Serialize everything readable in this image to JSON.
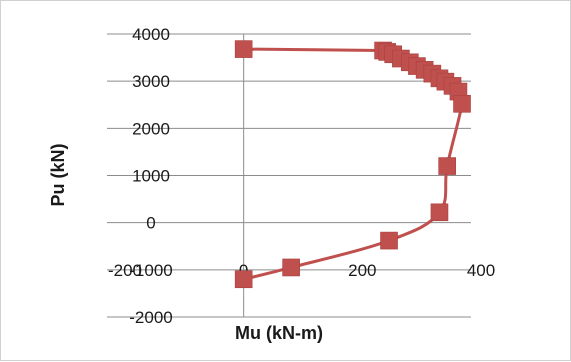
{
  "chart_data": {
    "type": "scatter",
    "title": "",
    "xlabel": "Mu (kN-m)",
    "ylabel": "Pu (kN)",
    "xlim": [
      -200,
      400
    ],
    "ylim": [
      -2000,
      4000
    ],
    "x_ticks": [
      -200,
      0,
      200,
      400
    ],
    "y_ticks": [
      -2000,
      -1000,
      0,
      1000,
      2000,
      3000,
      4000
    ],
    "x_tick_labels": [
      "-200",
      "0",
      "200",
      "400"
    ],
    "y_tick_labels": [
      "-2000",
      "-1000",
      "0",
      "1000",
      "2000",
      "3000",
      "4000"
    ],
    "grid": "horizontal",
    "legend": "none",
    "series": [
      {
        "color": "#c0504d",
        "marker": "square",
        "smooth_line": true,
        "points": [
          {
            "x": 0,
            "y": 3680
          },
          {
            "x": 235,
            "y": 3650
          },
          {
            "x": 242,
            "y": 3620
          },
          {
            "x": 252,
            "y": 3570
          },
          {
            "x": 265,
            "y": 3480
          },
          {
            "x": 280,
            "y": 3400
          },
          {
            "x": 292,
            "y": 3320
          },
          {
            "x": 305,
            "y": 3240
          },
          {
            "x": 318,
            "y": 3160
          },
          {
            "x": 330,
            "y": 3060
          },
          {
            "x": 340,
            "y": 2990
          },
          {
            "x": 352,
            "y": 2900
          },
          {
            "x": 362,
            "y": 2780
          },
          {
            "x": 368,
            "y": 2520
          },
          {
            "x": 343,
            "y": 1200
          },
          {
            "x": 330,
            "y": 220
          },
          {
            "x": 245,
            "y": -380
          },
          {
            "x": 80,
            "y": -950
          },
          {
            "x": 0,
            "y": -1200
          }
        ]
      }
    ]
  }
}
